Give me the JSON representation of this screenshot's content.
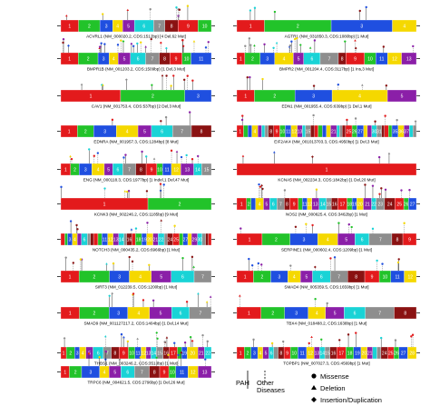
{
  "genes": [
    {
      "label": "ACVRL1 (NM_000020.2, CDS:1512bp) [4 Del,62 Mut]",
      "exons": 10
    },
    {
      "label": "AGTR1 (NM_031850.3, CDS:1080bp) [1 Mut]",
      "exons": 4
    },
    {
      "label": "BMPR1B (NM_001203.2, CDS:1509bp) [1 Del,3 Mut]",
      "exons": 11
    },
    {
      "label": "BMPR2 (NM_001204.4, CDS:3117bp) [1 Ins,3 Mut]",
      "exons": 13
    },
    {
      "label": "CAV1 (NM_001753.4, CDS:537bp) [2 Del,3 Mut]",
      "exons": 3
    },
    {
      "label": "EDN1 (NM_001955.4, CDS:639bp) [1 Del,1 Mut]",
      "exons": 5
    },
    {
      "label": "EDNRA (NM_001957.3, CDS:1284bp) [8 Mut]",
      "exons": 8
    },
    {
      "label": "EIF2AK4 (NM_001013703.3, CDS:4950bp) [1 Del,3 Mut]",
      "exons": 39
    },
    {
      "label": "ENG (NM_000118.3, CDS:1977bp) [1 Indel,1 Del,47 Mut]",
      "exons": 15
    },
    {
      "label": "KCNA5 (NM_002234.3, CDS:1842bp) [1 Del,20 Mut]",
      "exons": 1
    },
    {
      "label": "KCNK3 (NM_002246.2, CDS:1185bp) [9 Mut]",
      "exons": 2
    },
    {
      "label": "NOS2 (NM_000625.4, CDS:3462bp) [1 Mut]",
      "exons": 27
    },
    {
      "label": "NOTCH3 (NM_000435.2, CDS:6966bp) [1 Mut]",
      "exons": 33
    },
    {
      "label": "SERPINE1 (NM_000602.4, CDS:1209bp) [1 Mut]",
      "exons": 9
    },
    {
      "label": "SIRT3 (NM_012239.5, CDS:1200bp) [1 Mut]",
      "exons": 7
    },
    {
      "label": "SMAD4 (NM_005359.5, CDS:1659bp) [1 Mut]",
      "exons": 12
    },
    {
      "label": "SMAD9 (NM_001127217.2, CDS:1404bp) [1 Del,14 Mut]",
      "exons": 7
    },
    {
      "label": "TBX4 (NM_018488.2, CDS:1638bp) [1 Mut]",
      "exons": 8
    },
    {
      "label": "THBS1 (NM_003246.2, CDS:3513bp) [1 Mut]",
      "exons": 22
    },
    {
      "label": "TOPBP1 (NM_007027.3, CDS:4569bp) [1 Mut]",
      "exons": 28
    },
    {
      "label": "TRPC6 (NM_004621.5, CDS:2796bp) [1 Del,26 Mut]",
      "exons": 13
    }
  ],
  "legend": {
    "pah": "PAH",
    "other": "Other",
    "diseases": "Diseases",
    "missense": "Missense",
    "deletion": "Deletion",
    "insertion": "Insertion/Duplication"
  },
  "colors": {
    "red": "#e31a1c",
    "green": "#22c32a",
    "blue": "#1f4fe0",
    "yellow": "#f5d800",
    "purple": "#8b1fa8",
    "cyan": "#19d3d6",
    "gray": "#8e8e8e",
    "darkred": "#8a1212"
  }
}
